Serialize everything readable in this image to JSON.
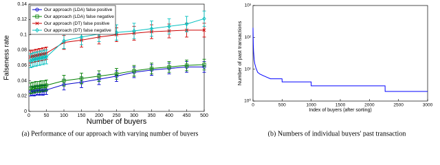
{
  "chart_data": [
    {
      "type": "line",
      "xlabel": "Number of buyers",
      "ylabel": "Falseness rate",
      "caption": "(a) Performance of our approach with varying number of buyers",
      "x": [
        5,
        10,
        15,
        20,
        25,
        30,
        35,
        40,
        45,
        50,
        100,
        150,
        200,
        250,
        300,
        350,
        400,
        450,
        500
      ],
      "xlim": [
        0,
        500
      ],
      "xticks": [
        0,
        50,
        100,
        150,
        200,
        250,
        300,
        350,
        400,
        450,
        500
      ],
      "ylim": [
        0,
        0.14
      ],
      "yticks": [
        0,
        0.02,
        0.04,
        0.06,
        0.08,
        0.1,
        0.12,
        0.14
      ],
      "legend": "upper-left",
      "series": [
        {
          "name": "Our approach (LDA) false positive",
          "color": "#0000cc",
          "marker": "circle",
          "values": [
            0.026,
            0.027,
            0.026,
            0.027,
            0.028,
            0.027,
            0.028,
            0.027,
            0.028,
            0.028,
            0.035,
            0.038,
            0.042,
            0.046,
            0.051,
            0.054,
            0.056,
            0.058,
            0.058
          ],
          "errors": [
            0.006,
            0.006,
            0.006,
            0.006,
            0.006,
            0.006,
            0.006,
            0.006,
            0.006,
            0.006,
            0.007,
            0.007,
            0.007,
            0.007,
            0.007,
            0.007,
            0.007,
            0.007,
            0.007
          ]
        },
        {
          "name": "Our approach (LDA) false negative",
          "color": "#007f00",
          "marker": "square",
          "values": [
            0.03,
            0.031,
            0.031,
            0.032,
            0.032,
            0.032,
            0.033,
            0.033,
            0.033,
            0.034,
            0.04,
            0.043,
            0.046,
            0.049,
            0.053,
            0.056,
            0.058,
            0.06,
            0.061
          ],
          "errors": [
            0.007,
            0.007,
            0.007,
            0.007,
            0.007,
            0.007,
            0.007,
            0.007,
            0.007,
            0.007,
            0.007,
            0.007,
            0.007,
            0.007,
            0.007,
            0.007,
            0.007,
            0.007,
            0.007
          ]
        },
        {
          "name": "Our approach (DT) false positive",
          "color": "#cc0000",
          "marker": "x",
          "values": [
            0.071,
            0.072,
            0.072,
            0.073,
            0.073,
            0.074,
            0.074,
            0.075,
            0.075,
            0.076,
            0.09,
            0.093,
            0.097,
            0.1,
            0.102,
            0.104,
            0.105,
            0.106,
            0.106
          ],
          "errors": [
            0.008,
            0.008,
            0.008,
            0.008,
            0.008,
            0.008,
            0.008,
            0.008,
            0.008,
            0.008,
            0.009,
            0.009,
            0.009,
            0.009,
            0.009,
            0.009,
            0.009,
            0.009,
            0.009
          ]
        },
        {
          "name": "Our approach (DT) false negative",
          "color": "#00bfbf",
          "marker": "diamond",
          "values": [
            0.066,
            0.067,
            0.068,
            0.068,
            0.069,
            0.069,
            0.07,
            0.07,
            0.071,
            0.071,
            0.092,
            0.097,
            0.101,
            0.103,
            0.105,
            0.108,
            0.111,
            0.114,
            0.121
          ],
          "errors": [
            0.009,
            0.009,
            0.009,
            0.009,
            0.009,
            0.009,
            0.009,
            0.009,
            0.009,
            0.009,
            0.01,
            0.01,
            0.01,
            0.01,
            0.01,
            0.01,
            0.01,
            0.01,
            0.01
          ]
        }
      ]
    },
    {
      "type": "line",
      "xlabel": "Index of buyers (after sorting)",
      "ylabel": "Number of past transactions",
      "caption": "(b) Numbers of individual buyers' past transaction",
      "log_y": true,
      "x": [
        0,
        5,
        10,
        20,
        30,
        50,
        80,
        120,
        200,
        300,
        499,
        500,
        999,
        1000,
        2269,
        2270,
        3000
      ],
      "xlim": [
        0,
        3000
      ],
      "xticks": [
        0,
        500,
        1000,
        1500,
        2000,
        2500,
        3000
      ],
      "ylim": [
        1,
        1000
      ],
      "yticks": [
        {
          "value": 1,
          "label": "10⁰"
        },
        {
          "value": 10,
          "label": "10¹"
        },
        {
          "value": 100,
          "label": "10²"
        },
        {
          "value": 1000,
          "label": "10³"
        }
      ],
      "series": [
        {
          "color": "#0000ff",
          "values": [
            200,
            60,
            35,
            20,
            15,
            11,
            8,
            7,
            6,
            5,
            5,
            4,
            4,
            3,
            3,
            2,
            2
          ]
        }
      ]
    }
  ]
}
